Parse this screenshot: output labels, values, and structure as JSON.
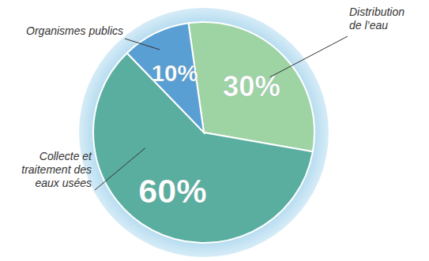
{
  "chart_data": {
    "type": "pie",
    "categories": [
      "Distribution de l’eau",
      "Collecte et traitement des eaux usées",
      "Organismes publics"
    ],
    "values": [
      30,
      60,
      10
    ],
    "value_labels": [
      "30%",
      "60%",
      "10%"
    ],
    "colors": [
      "#9ed3a4",
      "#5aae9f",
      "#5a9fd4"
    ],
    "data_labels": true
  }
}
